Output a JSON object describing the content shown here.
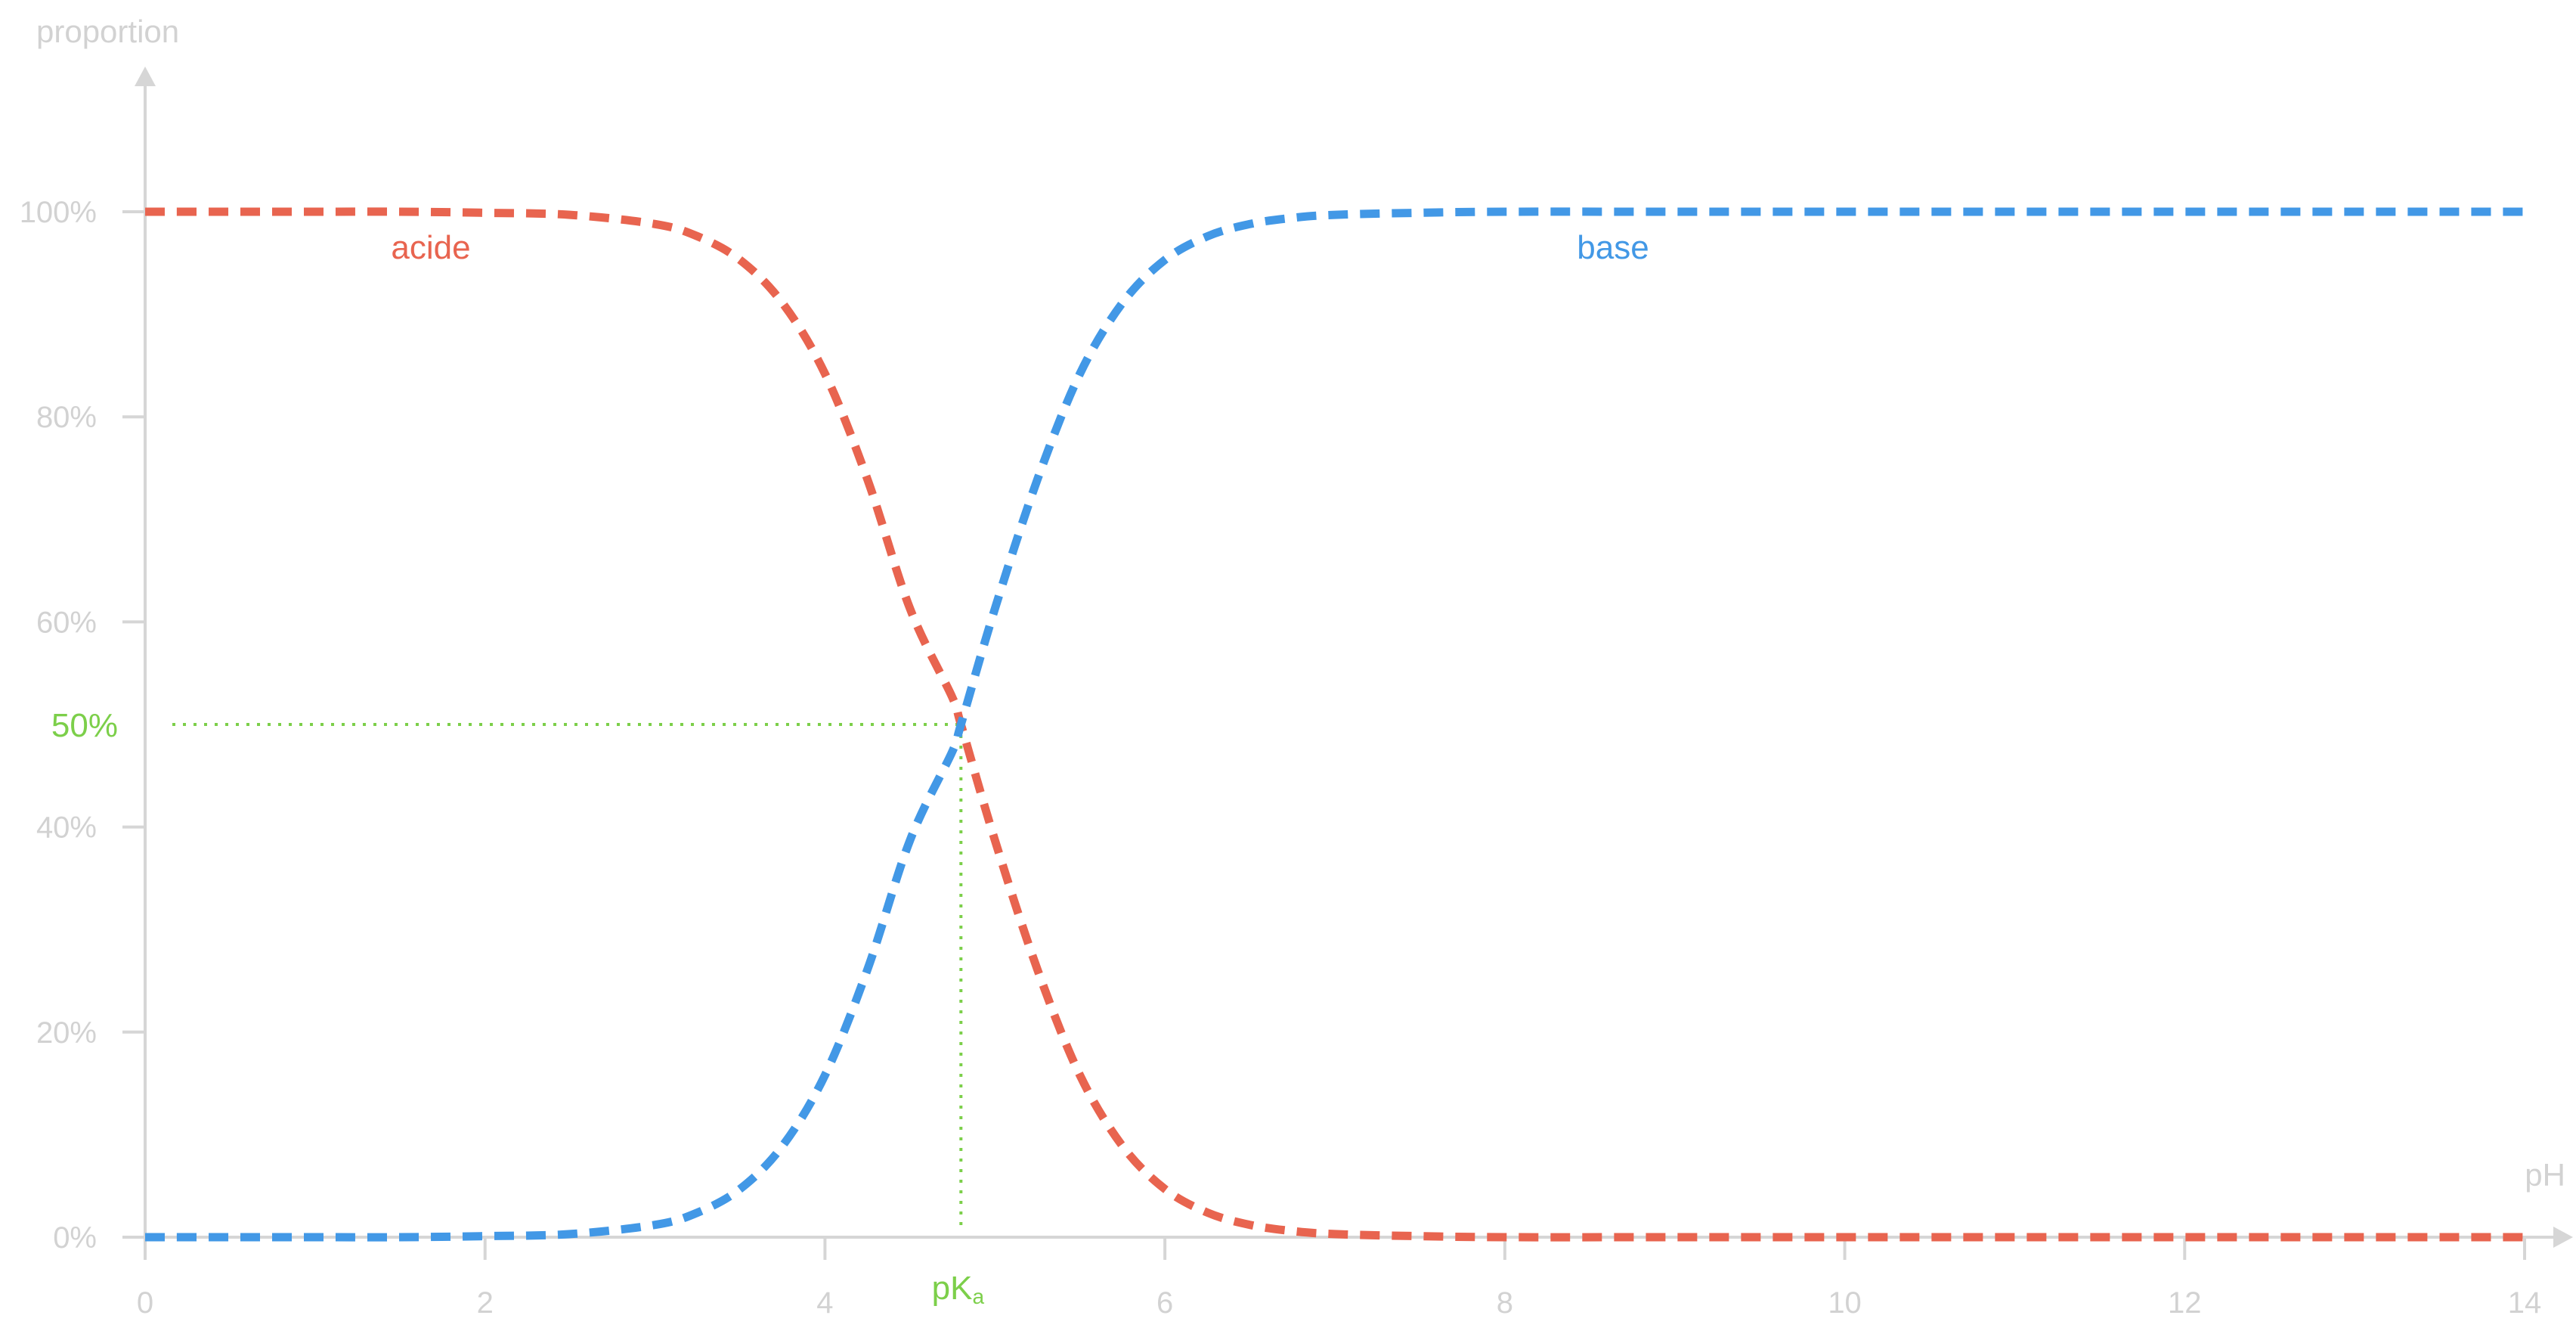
{
  "chart_data": {
    "type": "line",
    "xlabel": "pH",
    "ylabel": "proportion",
    "xlim": [
      0,
      14
    ],
    "ylim": [
      0,
      100
    ],
    "x_ticks": [
      0,
      2,
      4,
      6,
      8,
      10,
      12,
      14
    ],
    "x_tick_labels": [
      "0",
      "2",
      "4",
      "6",
      "8",
      "10",
      "12",
      "14"
    ],
    "y_ticks": [
      0,
      20,
      40,
      60,
      80,
      100
    ],
    "y_tick_labels": [
      "0%",
      "20%",
      "40%",
      "60%",
      "80%",
      "100%"
    ],
    "grid": false,
    "series": [
      {
        "name": "acide",
        "color": "#e8644f",
        "x": [
          0,
          0.5,
          1,
          1.5,
          2,
          2.5,
          3,
          3.25,
          3.5,
          3.75,
          4,
          4.25,
          4.5,
          4.75,
          4.8,
          5,
          5.25,
          5.5,
          5.75,
          6,
          6.25,
          6.5,
          6.75,
          7,
          7.5,
          8,
          9,
          10,
          11,
          12,
          13,
          14
        ],
        "values": [
          100,
          100,
          100,
          100,
          99.9,
          99.7,
          98.8,
          97.6,
          95.3,
          91.1,
          84.2,
          73.9,
          61.3,
          52.6,
          50.0,
          38.7,
          26.1,
          15.8,
          8.9,
          4.7,
          2.4,
          1.2,
          0.6,
          0.3,
          0.1,
          0,
          0,
          0,
          0,
          0,
          0,
          0
        ]
      },
      {
        "name": "base",
        "color": "#4298e6",
        "x": [
          0,
          0.5,
          1,
          1.5,
          2,
          2.5,
          3,
          3.25,
          3.5,
          3.75,
          4,
          4.25,
          4.5,
          4.75,
          4.8,
          5,
          5.25,
          5.5,
          5.75,
          6,
          6.25,
          6.5,
          6.75,
          7,
          7.5,
          8,
          9,
          10,
          11,
          12,
          13,
          14
        ],
        "values": [
          0,
          0,
          0,
          0,
          0.1,
          0.3,
          1.2,
          2.4,
          4.7,
          8.9,
          15.8,
          26.1,
          38.7,
          47.4,
          50.0,
          61.3,
          73.9,
          84.2,
          91.1,
          95.3,
          97.6,
          98.8,
          99.4,
          99.7,
          99.9,
          100,
          100,
          100,
          100,
          100,
          100,
          100
        ]
      }
    ],
    "annotations": {
      "pka_label": "pKa",
      "pka_x": 4.8,
      "half_label": "50%",
      "half_y": 50,
      "color": "#7ccf4a"
    }
  }
}
